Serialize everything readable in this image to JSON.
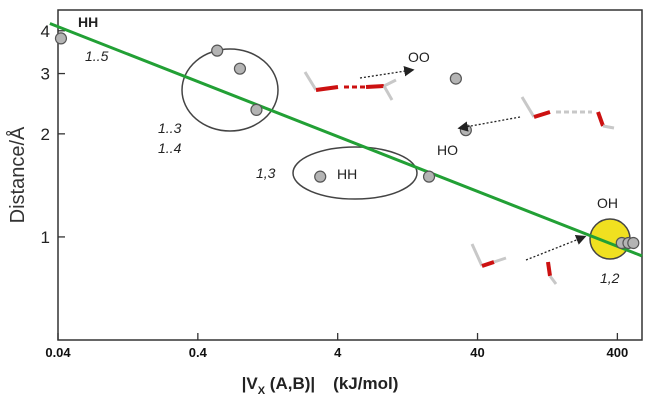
{
  "chart_data": {
    "type": "scatter",
    "x_axis": {
      "scale": "log",
      "range": [
        0.04,
        600
      ],
      "ticks": [
        "0.04",
        "0.4",
        "4",
        "40",
        "400"
      ],
      "tick_values": [
        0.04,
        0.4,
        4,
        40,
        400
      ],
      "label_main": "|V",
      "label_sub": "X",
      "label_rest": " (A,B)|",
      "label_unit": "(kJ/mol)"
    },
    "y_axis": {
      "scale": "log",
      "range": [
        0.5,
        4.6
      ],
      "ticks": [
        "1",
        "2",
        "3",
        "4"
      ],
      "tick_values": [
        1,
        2,
        3,
        4
      ],
      "label": "Distance/Å"
    },
    "points": [
      {
        "x": 0.042,
        "y": 3.8
      },
      {
        "x": 0.55,
        "y": 3.5
      },
      {
        "x": 0.8,
        "y": 3.1
      },
      {
        "x": 1.05,
        "y": 2.35
      },
      {
        "x": 3.0,
        "y": 1.5
      },
      {
        "x": 18.0,
        "y": 1.5
      },
      {
        "x": 28.0,
        "y": 2.9
      },
      {
        "x": 33.0,
        "y": 2.05
      },
      {
        "x": 430.0,
        "y": 0.96
      },
      {
        "x": 480.0,
        "y": 0.96
      },
      {
        "x": 520.0,
        "y": 0.96
      }
    ],
    "fit_line": {
      "x": [
        0.035,
        600
      ],
      "y": [
        4.2,
        0.88
      ],
      "color": "#22a035"
    },
    "annotations": {
      "hh_top": "HH",
      "label_15": "1..5",
      "label_13": "1..3",
      "label_14": "1..4",
      "label_13b": "1,3",
      "hh_mid": "HH",
      "oo": "OO",
      "ho": "HO",
      "oh": "OH",
      "label_12": "1,2"
    },
    "colors": {
      "point_fill": "#b4b4b4",
      "point_stroke": "#555555",
      "highlight": "#f0e020",
      "molecule_red": "#cc1111",
      "molecule_gray": "#c8c8c8"
    },
    "grid": false
  }
}
